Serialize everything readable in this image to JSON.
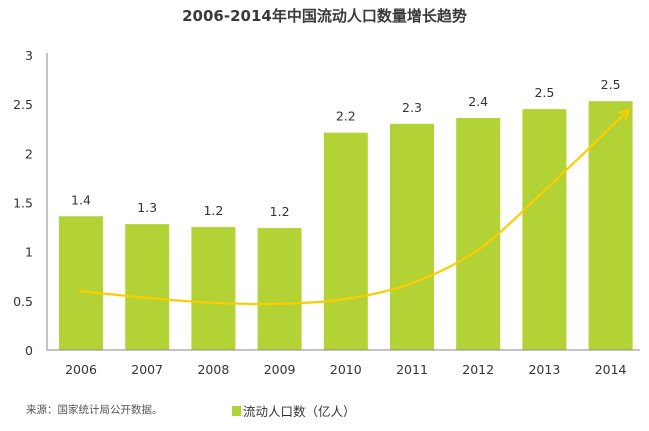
{
  "chart_data": {
    "type": "bar",
    "title": "2006-2014年中国流动人口数量增长趋势",
    "xlabel": "",
    "ylabel": "",
    "categories": [
      "2006",
      "2007",
      "2008",
      "2009",
      "2010",
      "2011",
      "2012",
      "2013",
      "2014"
    ],
    "series": [
      {
        "name": "流动人口数（亿人）",
        "values": [
          1.36,
          1.28,
          1.25,
          1.24,
          2.21,
          2.3,
          2.36,
          2.45,
          2.53
        ],
        "data_labels": [
          "1.4",
          "1.3",
          "1.2",
          "1.2",
          "2.2",
          "2.3",
          "2.4",
          "2.5",
          "2.5"
        ],
        "color": "#b2d235"
      }
    ],
    "ylim": [
      0,
      3
    ],
    "yticks": [
      0,
      0.5,
      1,
      1.5,
      2,
      2.5,
      3
    ],
    "ytick_labels": [
      "0",
      "0.5",
      "1",
      "1.5",
      "2",
      "2.5",
      "3"
    ],
    "grid": false,
    "legend_position": "bottom-center",
    "annotations": [
      {
        "type": "trend-arrow",
        "description": "upward-curving trend arrow",
        "color": "#ffcc00",
        "points": [
          [
            2006,
            0.6
          ],
          [
            2007,
            0.53
          ],
          [
            2008,
            0.48
          ],
          [
            2009,
            0.47
          ],
          [
            2010,
            0.52
          ],
          [
            2011,
            0.68
          ],
          [
            2012,
            1.02
          ],
          [
            2013,
            1.62
          ],
          [
            2014,
            2.44
          ]
        ]
      }
    ],
    "source_note": "来源：国家统计局公开数据。"
  },
  "legend": {
    "label": "流动人口数（亿人）",
    "color": "#b2d235"
  },
  "colors": {
    "bar": "#b2d235",
    "trend": "#ffcc00",
    "axis": "#888888",
    "text": "#333333"
  }
}
